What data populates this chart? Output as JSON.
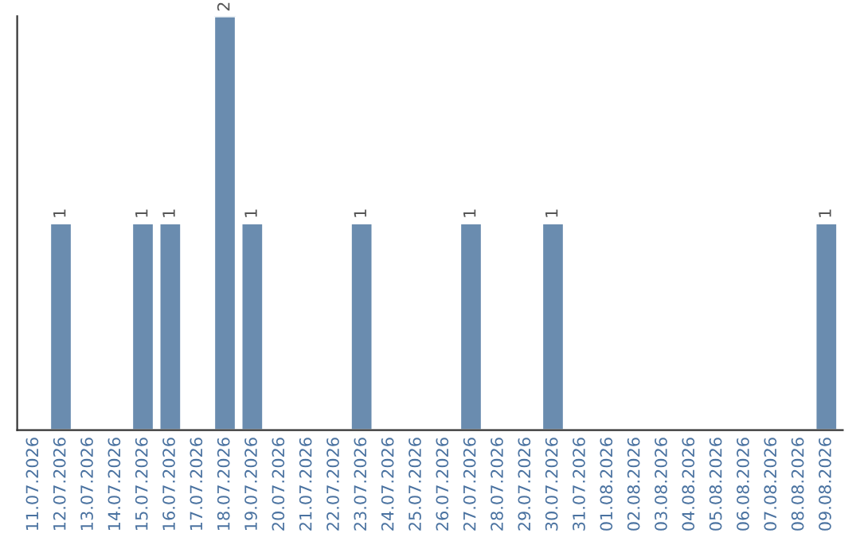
{
  "chart_data": {
    "type": "bar",
    "categories": [
      "11.07.2026",
      "12.07.2026",
      "13.07.2026",
      "14.07.2026",
      "15.07.2026",
      "16.07.2026",
      "17.07.2026",
      "18.07.2026",
      "19.07.2026",
      "20.07.2026",
      "21.07.2026",
      "22.07.2026",
      "23.07.2026",
      "24.07.2026",
      "25.07.2026",
      "26.07.2026",
      "27.07.2026",
      "28.07.2026",
      "29.07.2026",
      "30.07.2026",
      "31.07.2026",
      "01.08.2026",
      "02.08.2026",
      "03.08.2026",
      "04.08.2026",
      "05.08.2026",
      "06.08.2026",
      "07.08.2026",
      "08.08.2026",
      "09.08.2026"
    ],
    "values": [
      0,
      1,
      0,
      0,
      1,
      1,
      0,
      2,
      1,
      0,
      0,
      0,
      1,
      0,
      0,
      0,
      1,
      0,
      0,
      1,
      0,
      0,
      0,
      0,
      0,
      0,
      0,
      0,
      0,
      1
    ],
    "value_labels": [
      null,
      "1",
      null,
      null,
      "1",
      "1",
      null,
      "2",
      "1",
      null,
      null,
      null,
      "1",
      null,
      null,
      null,
      "1",
      null,
      null,
      "1",
      null,
      null,
      null,
      null,
      null,
      null,
      null,
      null,
      null,
      "1"
    ],
    "color": "#6a8caf",
    "ylim": [
      0,
      2.0
    ],
    "tick_labels": "x",
    "grid": false,
    "legend": false
  }
}
